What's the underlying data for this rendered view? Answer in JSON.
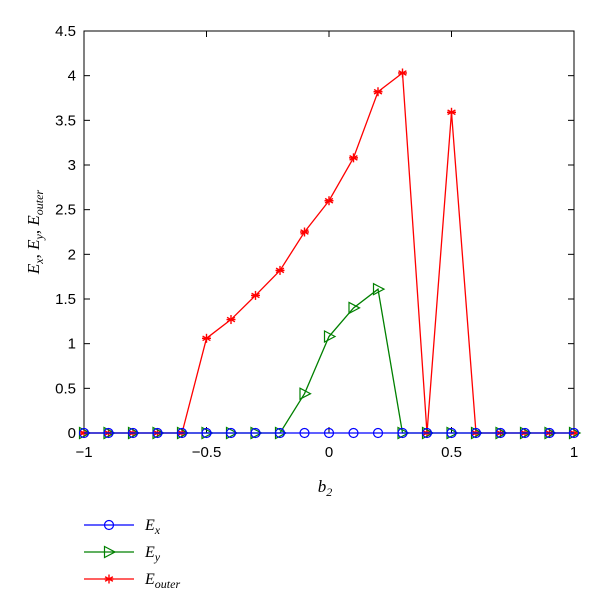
{
  "chart_data": {
    "type": "line",
    "x": [
      -1,
      -0.9,
      -0.8,
      -0.7,
      -0.6,
      -0.5,
      -0.4,
      -0.3,
      -0.2,
      -0.1,
      0,
      0.1,
      0.2,
      0.3,
      0.4,
      0.5,
      0.6,
      0.7,
      0.8,
      0.9,
      1
    ],
    "series": [
      {
        "name": "E_x",
        "label_main": "E",
        "label_sub": "x",
        "color": "#0000ff",
        "marker": "circle",
        "values": [
          0,
          0,
          0,
          0,
          0,
          0,
          0,
          0,
          0,
          0,
          0,
          0,
          0,
          0,
          0,
          0,
          0,
          0,
          0,
          0,
          0
        ]
      },
      {
        "name": "E_y",
        "label_main": "E",
        "label_sub": "y",
        "color": "#008000",
        "marker": "triangle-right",
        "values": [
          0,
          0,
          0,
          0,
          0,
          0,
          0,
          0,
          0,
          0.44,
          1.08,
          1.4,
          1.61,
          0,
          0,
          0,
          0,
          0,
          0,
          0,
          0
        ]
      },
      {
        "name": "E_outer",
        "label_main": "E",
        "label_sub": "outer",
        "color": "#ff0000",
        "marker": "asterisk",
        "values": [
          0,
          0,
          0,
          0,
          0,
          1.06,
          1.27,
          1.54,
          1.82,
          2.25,
          2.6,
          3.08,
          3.82,
          4.03,
          0,
          3.59,
          0,
          0,
          0,
          0,
          0
        ]
      }
    ],
    "xlabel_main": "b",
    "xlabel_sub": "2",
    "ylabel_parts": [
      {
        "main": "E",
        "sub": "x"
      },
      {
        "main": "E",
        "sub": "y"
      },
      {
        "main": "E",
        "sub": "outer"
      }
    ],
    "ylabel_separator": ", ",
    "xlim": [
      -1,
      1
    ],
    "ylim": [
      0,
      4.5
    ],
    "x_ticks": [
      -1,
      -0.5,
      0,
      0.5,
      1
    ],
    "x_tick_labels": [
      "−1",
      "−0.5",
      "0",
      "0.5",
      "1"
    ],
    "y_ticks": [
      0,
      0.5,
      1,
      1.5,
      2,
      2.5,
      3,
      3.5,
      4,
      4.5
    ],
    "y_tick_labels": [
      "0",
      "0.5",
      "1",
      "1.5",
      "2",
      "2.5",
      "3",
      "3.5",
      "4",
      "4.5"
    ],
    "grid": false,
    "legend_position": "bottom-left, below plot"
  }
}
